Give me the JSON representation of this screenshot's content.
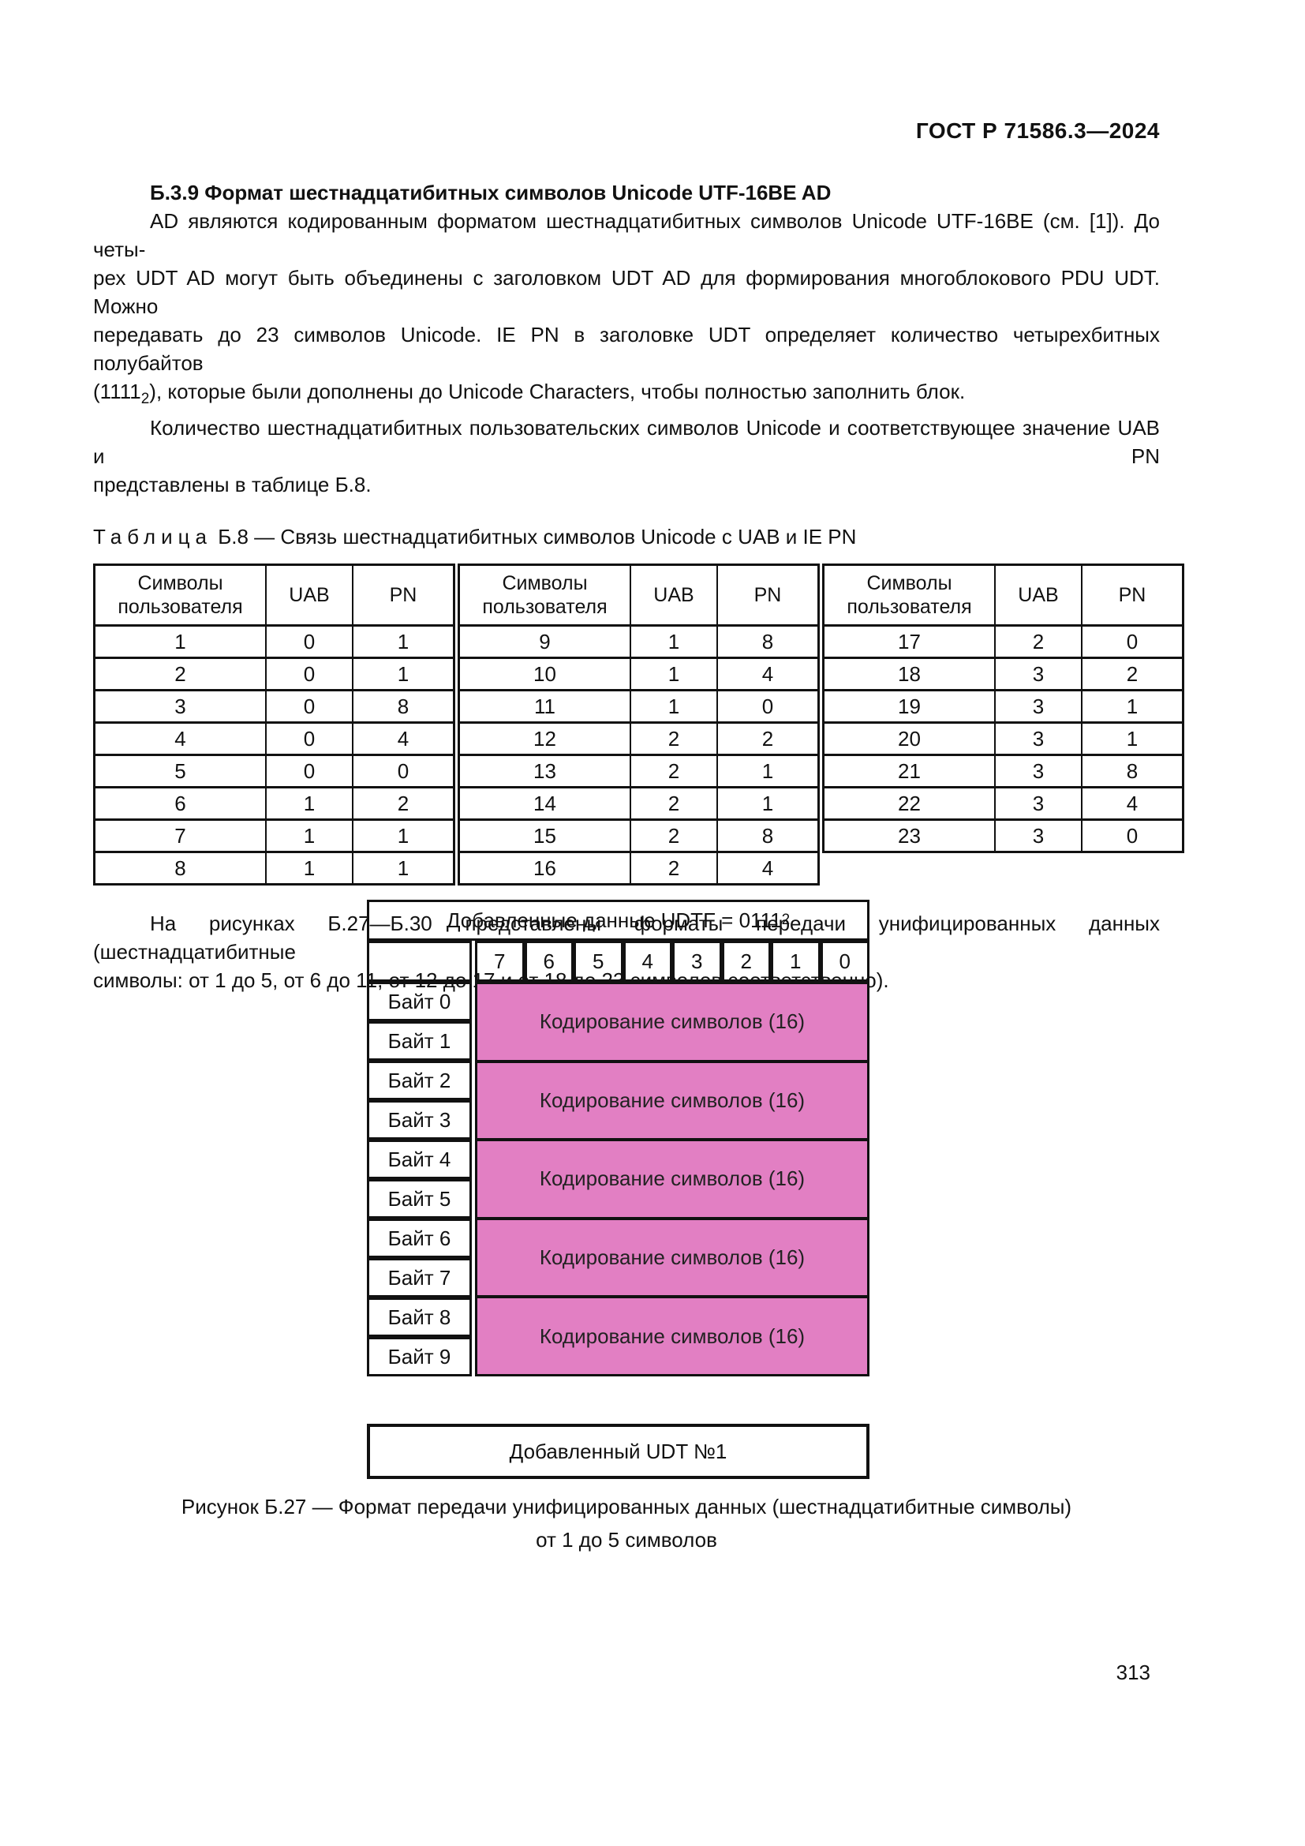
{
  "header": {
    "title": "ГОСТ Р 71586.3—2024"
  },
  "section": {
    "heading": "Б.3.9 Формат шестнадцатибитных символов Unicode UTF-16BE AD",
    "para1_lines": [
      "AD являются кодированным форматом шестнадцатибитных символов Unicode UTF-16BE (см. [1]). До четы-",
      "рех UDT AD могут быть объединены с заголовком UDT AD для формирования многоблокового PDU UDT. Можно",
      "передавать до 23 символов Unicode. IE PN в заголовке UDT определяет количество четырехбитных полубайтов"
    ],
    "para1_last_pre": "(1111",
    "para1_last_sub": "2",
    "para1_last_post": "), которые были дополнены до Unicode Characters, чтобы полностью заполнить блок.",
    "para2_line1": "Количество шестнадцатибитных пользовательских символов Unicode и соответствующее значение UAB и PN",
    "para2_line2": "представлены в таблице Б.8.",
    "para3_line1": "На рисунках Б.27—Б.30 представлены форматы передачи унифицированных данных (шестнадцатибитные",
    "para3_line2": "символы: от 1 до 5, от 6 до 11, от 12 до 17 и от 18 до 23 символов соответственно)."
  },
  "table_b8": {
    "caption_label": "Таблица",
    "caption_rest": "Б.8 — Связь шестнадцатибитных символов Unicode с UAB и IE PN",
    "col_headers": [
      "Символы пользователя",
      "UAB",
      "PN"
    ],
    "groups": [
      {
        "rows": [
          [
            1,
            0,
            1
          ],
          [
            2,
            0,
            1
          ],
          [
            3,
            0,
            8
          ],
          [
            4,
            0,
            4
          ],
          [
            5,
            0,
            0
          ],
          [
            6,
            1,
            2
          ],
          [
            7,
            1,
            1
          ],
          [
            8,
            1,
            1
          ]
        ]
      },
      {
        "rows": [
          [
            9,
            1,
            8
          ],
          [
            10,
            1,
            4
          ],
          [
            11,
            1,
            0
          ],
          [
            12,
            2,
            2
          ],
          [
            13,
            2,
            1
          ],
          [
            14,
            2,
            1
          ],
          [
            15,
            2,
            8
          ],
          [
            16,
            2,
            4
          ]
        ]
      },
      {
        "rows": [
          [
            17,
            2,
            0
          ],
          [
            18,
            3,
            2
          ],
          [
            19,
            3,
            1
          ],
          [
            20,
            3,
            1
          ],
          [
            21,
            3,
            8
          ],
          [
            22,
            3,
            4
          ],
          [
            23,
            3,
            0
          ]
        ]
      }
    ]
  },
  "figure": {
    "title_main": "Добавленные данные UDTF = 0111",
    "title_sub": "2",
    "bits": [
      "7",
      "6",
      "5",
      "4",
      "3",
      "2",
      "1",
      "0"
    ],
    "byte_labels": [
      "Байт 0",
      "Байт 1",
      "Байт 2",
      "Байт 3",
      "Байт 4",
      "Байт 5",
      "Байт 6",
      "Байт 7",
      "Байт 8",
      "Байт 9"
    ],
    "blocks": [
      "Кодирование символов (16)",
      "Кодирование символов (16)",
      "Кодирование символов (16)",
      "Кодирование символов (16)",
      "Кодирование символов (16)"
    ],
    "pink_color": "#e27fc3",
    "udt_box_label": "Добавленный UDT №1",
    "caption_line1": "Рисунок Б.27 — Формат передачи унифицированных данных (шестнадцатибитные символы)",
    "caption_line2": "от 1 до 5 символов"
  },
  "footer": {
    "page_number": "313"
  }
}
